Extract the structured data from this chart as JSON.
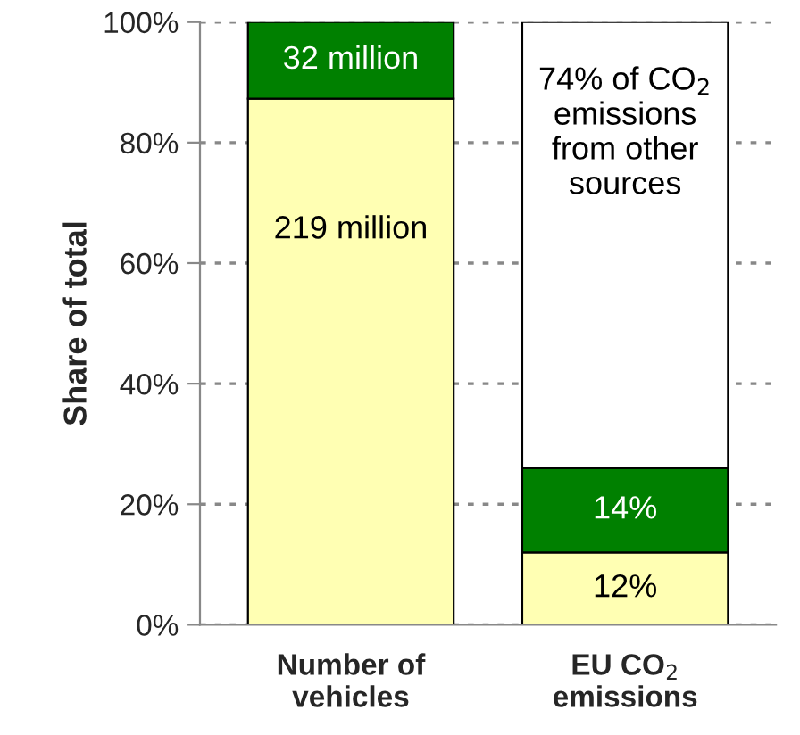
{
  "chart_data": {
    "type": "bar",
    "stacked": true,
    "ylabel": "Share of total",
    "categories": [
      "Number of\nvehicles",
      "EU CO$_{2}$\nemissions"
    ],
    "series": [
      {
        "color": "#ffffb3",
        "values": [
          87.3,
          12
        ],
        "value_labels": [
          null,
          "12%"
        ]
      },
      {
        "color": "#008000",
        "values": [
          12.7,
          14
        ],
        "value_labels": [
          null,
          "14%"
        ]
      },
      {
        "color": "#ffffff",
        "values": [
          null,
          74
        ],
        "value_labels": [
          null,
          "74% of CO$_{2}$\nemissions\nfrom other\nsources"
        ]
      }
    ],
    "ylim": [
      0,
      100
    ],
    "yticks": [
      {
        "value": 0,
        "label": "0%"
      },
      {
        "value": 20,
        "label": "20%"
      },
      {
        "value": 40,
        "label": "40%"
      },
      {
        "value": 60,
        "label": "60%"
      },
      {
        "value": 80,
        "label": "80%"
      },
      {
        "value": 100,
        "label": "100%"
      }
    ],
    "annotations": [
      "219 million",
      "32 million"
    ],
    "grid": "y",
    "legend": false
  }
}
